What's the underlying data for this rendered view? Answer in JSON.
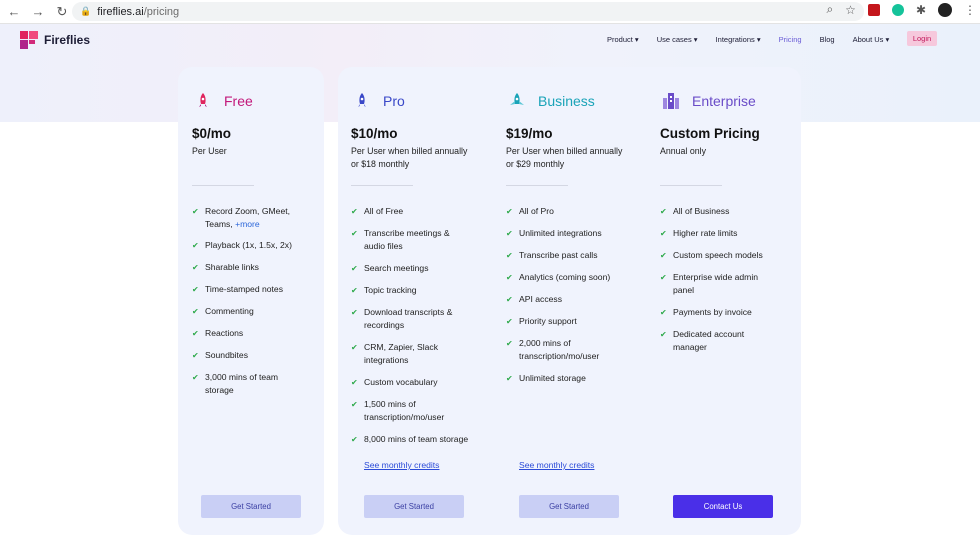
{
  "browser": {
    "back": "←",
    "forward": "→",
    "reload": "↻",
    "lock": "🔒",
    "url_host": "fireflies.ai",
    "url_path": "/pricing",
    "search": "⌕",
    "star": "☆",
    "puzzle": "✱",
    "menu": "⋮"
  },
  "header": {
    "logo_text": "Fireflies",
    "nav": [
      {
        "label": "Product ▾"
      },
      {
        "label": "Use cases ▾"
      },
      {
        "label": "Integrations ▾"
      },
      {
        "label": "Pricing"
      },
      {
        "label": "Blog"
      },
      {
        "label": "About Us ▾"
      }
    ],
    "login": "Login"
  },
  "plans": [
    {
      "name": "Free",
      "color": "#c2187a",
      "price": "$0/mo",
      "note": "Per User",
      "features": [
        {
          "text": "Record Zoom, GMeet, Teams,",
          "more": "+more"
        },
        {
          "text": "Playback (1x, 1.5x, 2x)"
        },
        {
          "text": "Sharable links"
        },
        {
          "text": "Time-stamped notes"
        },
        {
          "text": "Commenting"
        },
        {
          "text": "Reactions"
        },
        {
          "text": "Soundbites"
        },
        {
          "text": "3,000 mins of team storage"
        }
      ],
      "cta": "Get Started"
    },
    {
      "name": "Pro",
      "color": "#3a48c8",
      "price": "$10/mo",
      "note": "Per User when billed annually or $18 monthly",
      "features": [
        {
          "text": "All of Free"
        },
        {
          "text": "Transcribe meetings & audio files"
        },
        {
          "text": "Search meetings"
        },
        {
          "text": "Topic tracking"
        },
        {
          "text": "Download transcripts & recordings"
        },
        {
          "text": "CRM, Zapier, Slack integrations"
        },
        {
          "text": "Custom vocabulary"
        },
        {
          "text": "1,500 mins of transcription/mo/user"
        },
        {
          "text": "8,000 mins of team storage"
        }
      ],
      "credits": "See monthly credits",
      "cta": "Get Started"
    },
    {
      "name": "Business",
      "color": "#1aa3b8",
      "price": "$19/mo",
      "note": "Per User when billed annually or $29 monthly",
      "features": [
        {
          "text": "All of Pro"
        },
        {
          "text": "Unlimited integrations"
        },
        {
          "text": "Transcribe past calls"
        },
        {
          "text": "Analytics (coming soon)"
        },
        {
          "text": "API access"
        },
        {
          "text": "Priority support"
        },
        {
          "text": "2,000 mins of transcription/mo/user"
        },
        {
          "text": "Unlimited storage"
        }
      ],
      "credits": "See monthly credits",
      "cta": "Get Started"
    },
    {
      "name": "Enterprise",
      "color": "#6a4cc8",
      "price": "Custom Pricing",
      "note": "Annual only",
      "features": [
        {
          "text": "All of Business"
        },
        {
          "text": "Higher rate limits"
        },
        {
          "text": "Custom speech models"
        },
        {
          "text": "Enterprise wide admin panel"
        },
        {
          "text": "Payments by invoice"
        },
        {
          "text": "Dedicated account manager"
        }
      ],
      "cta": "Contact Us"
    }
  ],
  "icons": {
    "check": "✔"
  }
}
